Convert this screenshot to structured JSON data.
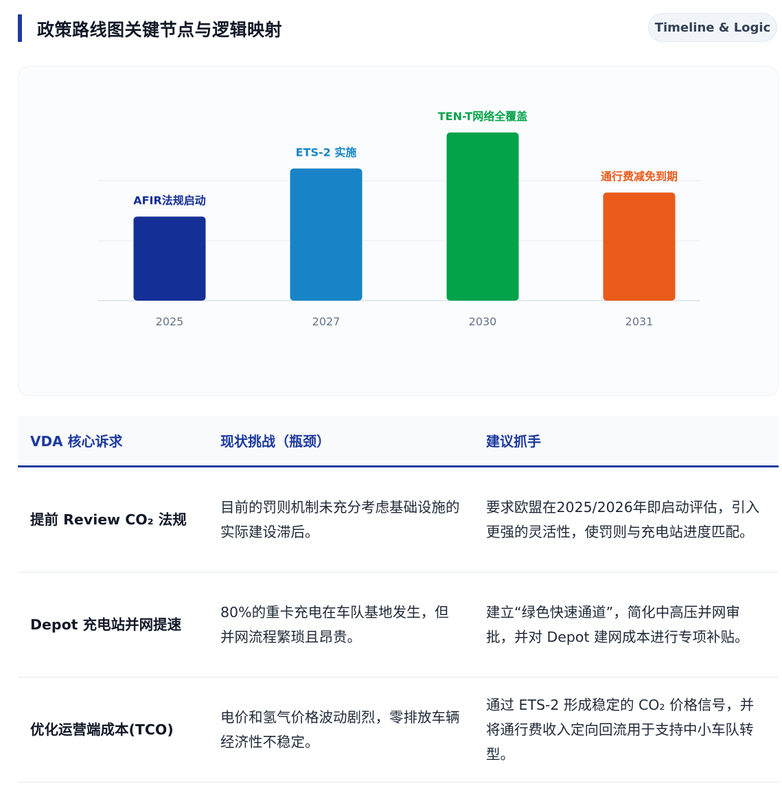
{
  "header": {
    "title": "政策路线图关键节点与逻辑映射",
    "badge": "Timeline & Logic",
    "accent_color": "#1e3a9f"
  },
  "chart_data": {
    "type": "bar",
    "categories": [
      "2025",
      "2027",
      "2030",
      "2031"
    ],
    "values": [
      70,
      110,
      140,
      90
    ],
    "data_labels": [
      "AFIR法规启动",
      "ETS-2 实施",
      "TEN-T网络全覆盖",
      "通行费减免到期"
    ],
    "colors": [
      "#142f96",
      "#1884c7",
      "#03a34a",
      "#ea5b1a"
    ],
    "title": "",
    "xlabel": "",
    "ylabel": "",
    "ylim": [
      0,
      150
    ],
    "y_axis_labels_shown": false,
    "gridlines": [
      0,
      50,
      100
    ],
    "grid": true,
    "legend": "none"
  },
  "table": {
    "headers": [
      "VDA 核心诉求",
      "现状挑战（瓶颈）",
      "建议抓手"
    ],
    "rows": [
      [
        "提前 Review CO₂ 法规",
        "目前的罚则机制未充分考虑基础设施的实际建设滞后。",
        "要求欧盟在2025/2026年即启动评估，引入更强的灵活性，使罚则与充电站进度匹配。"
      ],
      [
        "Depot 充电站并网提速",
        "80%的重卡充电在车队基地发生，但并网流程繁琐且昂贵。",
        "建立“绿色快速通道”，简化中高压并网审批，并对 Depot 建网成本进行专项补贴。"
      ],
      [
        "优化运营端成本(TCO)",
        "电价和氢气价格波动剧烈，零排放车辆经济性不稳定。",
        "通过 ETS-2 形成稳定的 CO₂ 价格信号，并将通行费收入定向回流用于支持中小车队转型。"
      ]
    ]
  }
}
